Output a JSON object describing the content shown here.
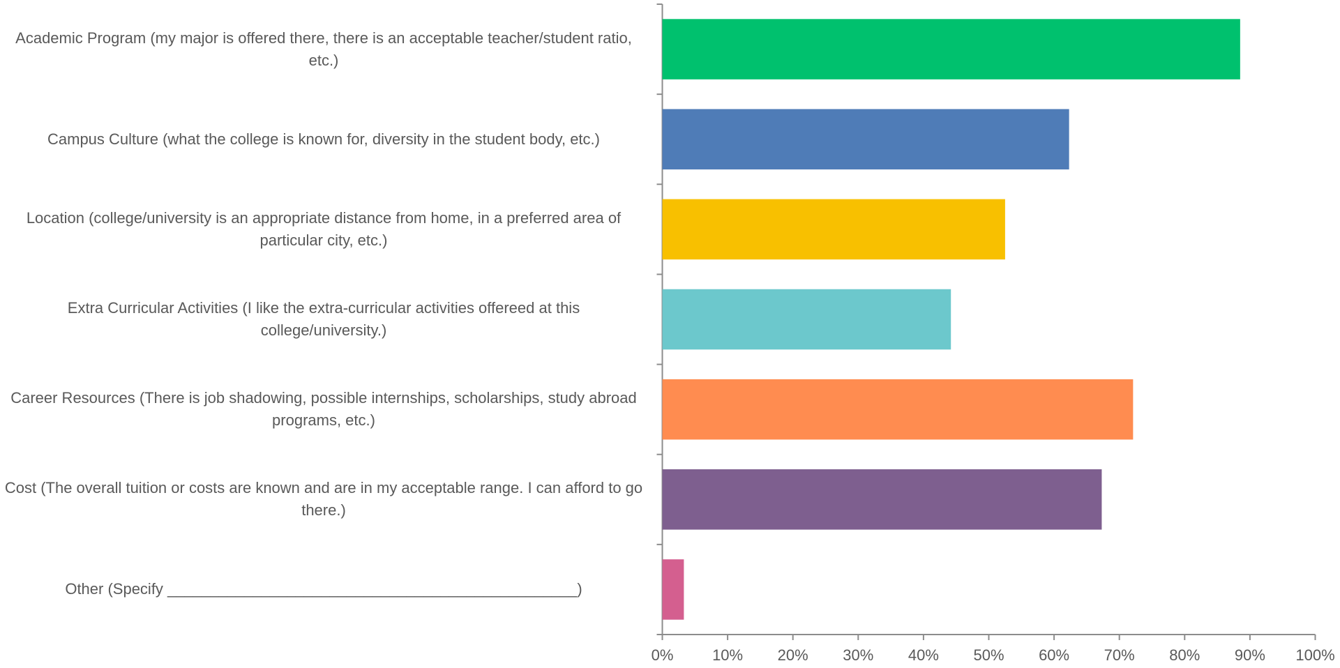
{
  "chart_data": {
    "type": "bar",
    "orientation": "horizontal",
    "categories": [
      "Academic Program (my major is offered there, there is an acceptable teacher/student ratio, etc.)",
      "Campus Culture (what the college is known for, diversity in the student body, etc.)",
      "Location (college/university is an appropriate distance from home, in a preferred area of particular city, etc.)",
      "Extra Curricular Activities (I like the extra-curricular activities offereed at this college/university.)",
      "Career Resources (There is job shadowing, possible internships, scholarships, study abroad programs, etc.)",
      "Cost (The overall tuition or costs are known and are in my acceptable range. I can afford to go there.)",
      "Other (Specify ________________________________________________)"
    ],
    "values": [
      88.5,
      62.3,
      52.5,
      44.2,
      72.1,
      67.3,
      3.3
    ],
    "colors": [
      "#00c16e",
      "#4f7cb7",
      "#f8c000",
      "#6cc8cc",
      "#ff8c50",
      "#7e5f8f",
      "#d45f8f"
    ],
    "xlim": [
      0,
      100
    ],
    "xticks": [
      {
        "value": 0,
        "label": "0%"
      },
      {
        "value": 10,
        "label": "10%"
      },
      {
        "value": 20,
        "label": "20%"
      },
      {
        "value": 30,
        "label": "30%"
      },
      {
        "value": 40,
        "label": "40%"
      },
      {
        "value": 50,
        "label": "50%"
      },
      {
        "value": 60,
        "label": "60%"
      },
      {
        "value": 70,
        "label": "70%"
      },
      {
        "value": 80,
        "label": "80%"
      },
      {
        "value": 90,
        "label": "90%"
      },
      {
        "value": 100,
        "label": "100%"
      }
    ]
  }
}
